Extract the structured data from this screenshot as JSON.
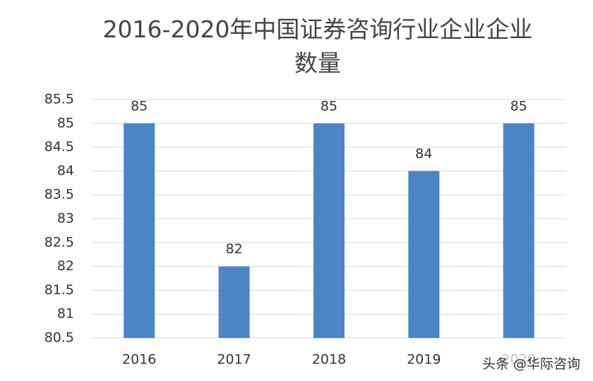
{
  "chart_data": {
    "type": "bar",
    "title": "2016-2020年中国证券咨询行业企业企业数量",
    "categories": [
      "2016",
      "2017",
      "2018",
      "2019",
      "2020"
    ],
    "values": [
      85,
      82,
      85,
      84,
      85
    ],
    "color": "#4a86c8",
    "ylim": [
      80.5,
      85.5
    ],
    "yticks": [
      80.5,
      81,
      81.5,
      82,
      82.5,
      83,
      83.5,
      84,
      84.5,
      85,
      85.5
    ],
    "grid": true
  },
  "watermark": "头条 @华际咨询"
}
